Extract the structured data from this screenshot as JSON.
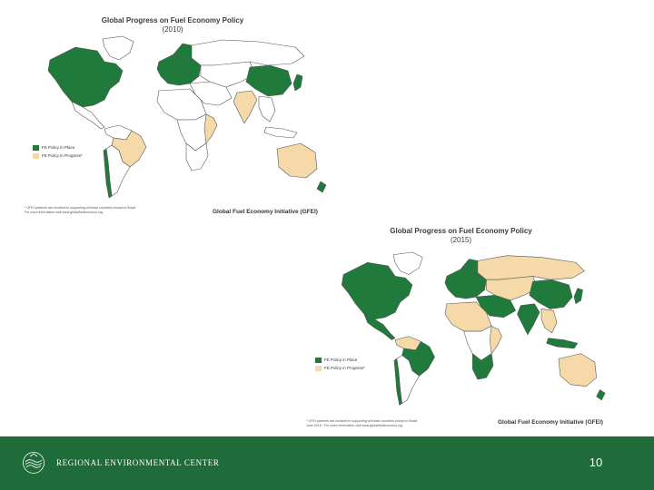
{
  "colors": {
    "policy_in_place": "#1f7a3c",
    "policy_in_progress": "#f5d9a8",
    "other_land": "#ffffff",
    "border": "#555555",
    "footer_bg": "#1f6b3a"
  },
  "map_2010": {
    "title": "Global Progress on Fuel Economy Policy",
    "year": "(2010)",
    "legend": [
      {
        "label": "FE Policy in Place",
        "status": "policy_in_place"
      },
      {
        "label": "FE Policy in Progress*",
        "status": "policy_in_progress"
      }
    ],
    "footnote_line1": "* GFEI partners are involved in supporting all these countries except in Brazil",
    "footnote_line2": "For more information visit www.globalfueleconomy.org",
    "source": "Global Fuel Economy Initiative (GFEI)"
  },
  "map_2015": {
    "title": "Global Progress on Fuel Economy Policy",
    "year": "(2015)",
    "legend": [
      {
        "label": "FE Policy in Place",
        "status": "policy_in_place"
      },
      {
        "label": "FE Policy in Progress*",
        "status": "policy_in_progress"
      }
    ],
    "footnote_line1": "* GFEI partners are involved in supporting all these countries except in Brazil",
    "footnote_line2": "June 2015 · For more information visit www.globalfueleconomy.org",
    "source": "Global Fuel Economy Initiative (GFEI)"
  },
  "footer": {
    "organization": "REGIONAL ENVIRONMENTAL CENTER",
    "logo_icon": "rec-logo-icon",
    "page_number": "10"
  }
}
